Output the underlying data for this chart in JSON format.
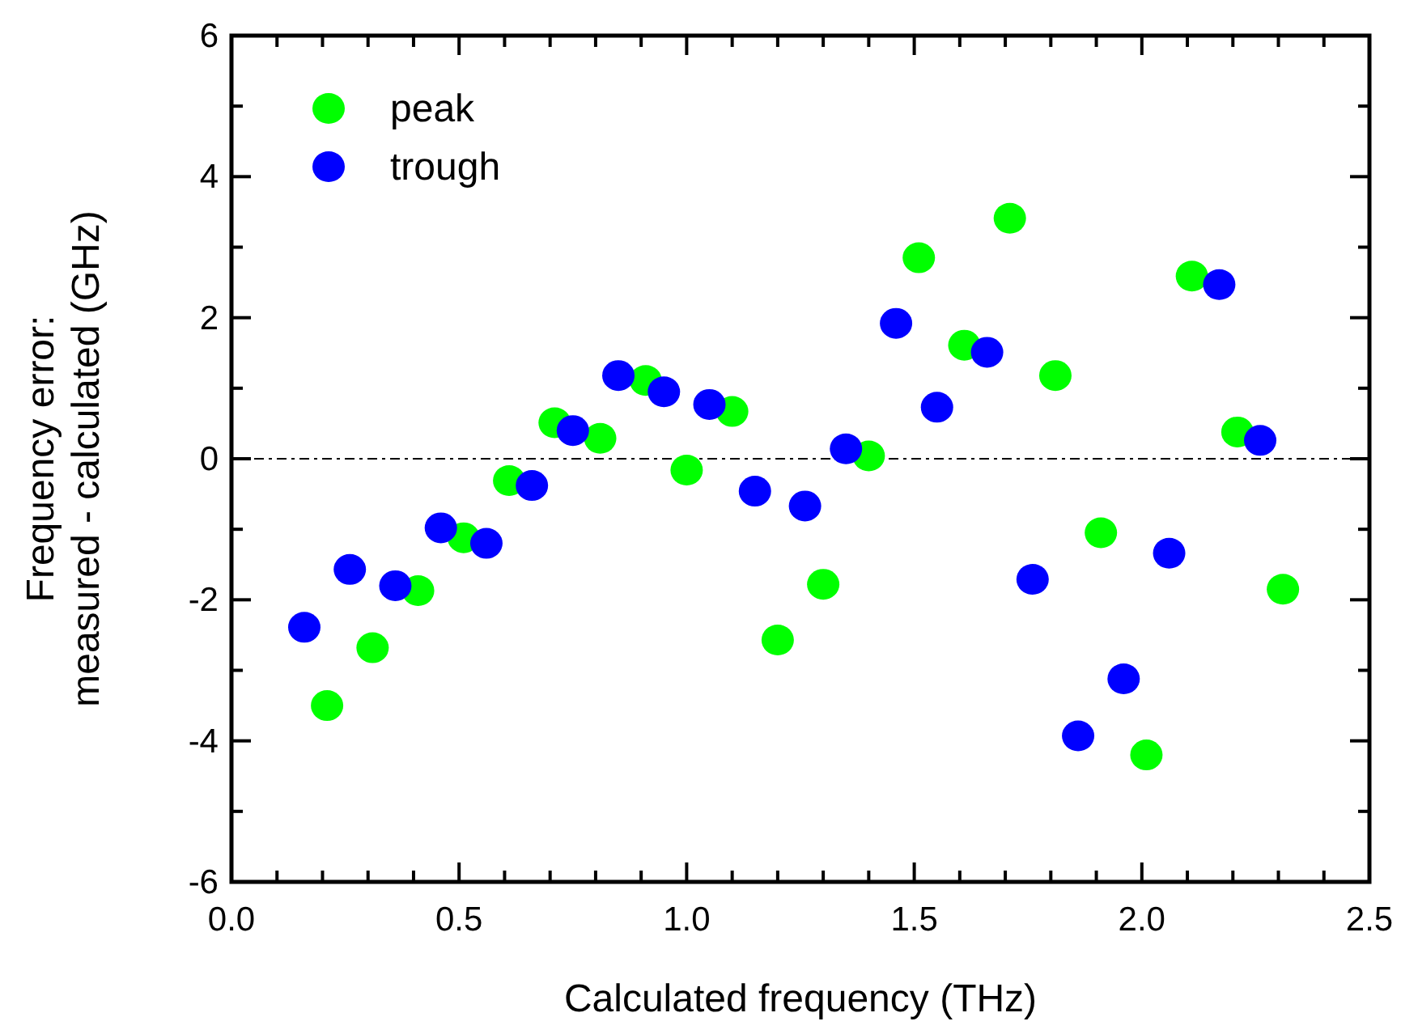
{
  "chart_data": {
    "type": "scatter",
    "xlabel": "Calculated frequency (THz)",
    "ylabel": "Frequency error:\nmeasured - calculated (GHz)",
    "xlim": [
      0,
      2.5
    ],
    "ylim": [
      -6,
      6
    ],
    "xticks": [
      {
        "value": 0,
        "label": "0.0"
      },
      {
        "value": 0.1,
        "label": null
      },
      {
        "value": 0.2,
        "label": null
      },
      {
        "value": 0.3,
        "label": null
      },
      {
        "value": 0.4,
        "label": null
      },
      {
        "value": 0.5,
        "label": "0.5"
      },
      {
        "value": 0.6,
        "label": null
      },
      {
        "value": 0.7,
        "label": null
      },
      {
        "value": 0.8,
        "label": null
      },
      {
        "value": 0.9,
        "label": null
      },
      {
        "value": 1,
        "label": "1.0"
      },
      {
        "value": 1.1,
        "label": null
      },
      {
        "value": 1.2,
        "label": null
      },
      {
        "value": 1.3,
        "label": null
      },
      {
        "value": 1.4,
        "label": null
      },
      {
        "value": 1.5,
        "label": "1.5"
      },
      {
        "value": 1.6,
        "label": null
      },
      {
        "value": 1.7,
        "label": null
      },
      {
        "value": 1.8,
        "label": null
      },
      {
        "value": 1.9,
        "label": null
      },
      {
        "value": 2,
        "label": "2.0"
      },
      {
        "value": 2.1,
        "label": null
      },
      {
        "value": 2.2,
        "label": null
      },
      {
        "value": 2.3,
        "label": null
      },
      {
        "value": 2.4,
        "label": null
      },
      {
        "value": 2.5,
        "label": "2.5"
      }
    ],
    "yticks": [
      -6,
      {
        "value": -5,
        "label": null
      },
      -4,
      {
        "value": -3,
        "label": null
      },
      -2,
      {
        "value": -1,
        "label": null
      },
      0,
      {
        "value": 1,
        "label": null
      },
      2,
      {
        "value": 3,
        "label": null
      },
      4,
      {
        "value": 5,
        "label": null
      },
      6
    ],
    "grid": false,
    "legend": "top left",
    "marker": "circle",
    "ref_lines": [
      {
        "axis": "y",
        "value": 0,
        "line_style": "dashed",
        "color": "#000000"
      }
    ],
    "series": [
      {
        "name": "peak",
        "color": "#00ff00",
        "x": [
          0.21,
          0.31,
          0.41,
          0.51,
          0.61,
          0.71,
          0.81,
          0.91,
          1.0,
          1.1,
          1.2,
          1.3,
          1.4,
          1.51,
          1.61,
          1.71,
          1.81,
          1.91,
          2.01,
          2.11,
          2.21,
          2.31
        ],
        "values": [
          -3.5,
          -2.68,
          -1.87,
          -1.12,
          -0.31,
          0.51,
          0.29,
          1.11,
          -0.16,
          0.67,
          -2.57,
          -1.78,
          0.04,
          2.85,
          1.61,
          3.41,
          1.18,
          -1.05,
          -4.2,
          2.59,
          0.38,
          -1.85
        ]
      },
      {
        "name": "trough",
        "color": "#0000ff",
        "x": [
          0.16,
          0.26,
          0.36,
          0.46,
          0.56,
          0.66,
          0.75,
          0.85,
          0.95,
          1.05,
          1.15,
          1.26,
          1.35,
          1.46,
          1.55,
          1.66,
          1.76,
          1.86,
          1.96,
          2.06,
          2.17,
          2.26
        ],
        "values": [
          -2.39,
          -1.57,
          -1.8,
          -0.98,
          -1.2,
          -0.38,
          0.4,
          1.18,
          0.95,
          0.77,
          -0.46,
          -0.67,
          0.14,
          1.92,
          0.73,
          1.51,
          -1.71,
          -3.93,
          -3.12,
          -1.34,
          2.47,
          0.26
        ]
      }
    ]
  }
}
